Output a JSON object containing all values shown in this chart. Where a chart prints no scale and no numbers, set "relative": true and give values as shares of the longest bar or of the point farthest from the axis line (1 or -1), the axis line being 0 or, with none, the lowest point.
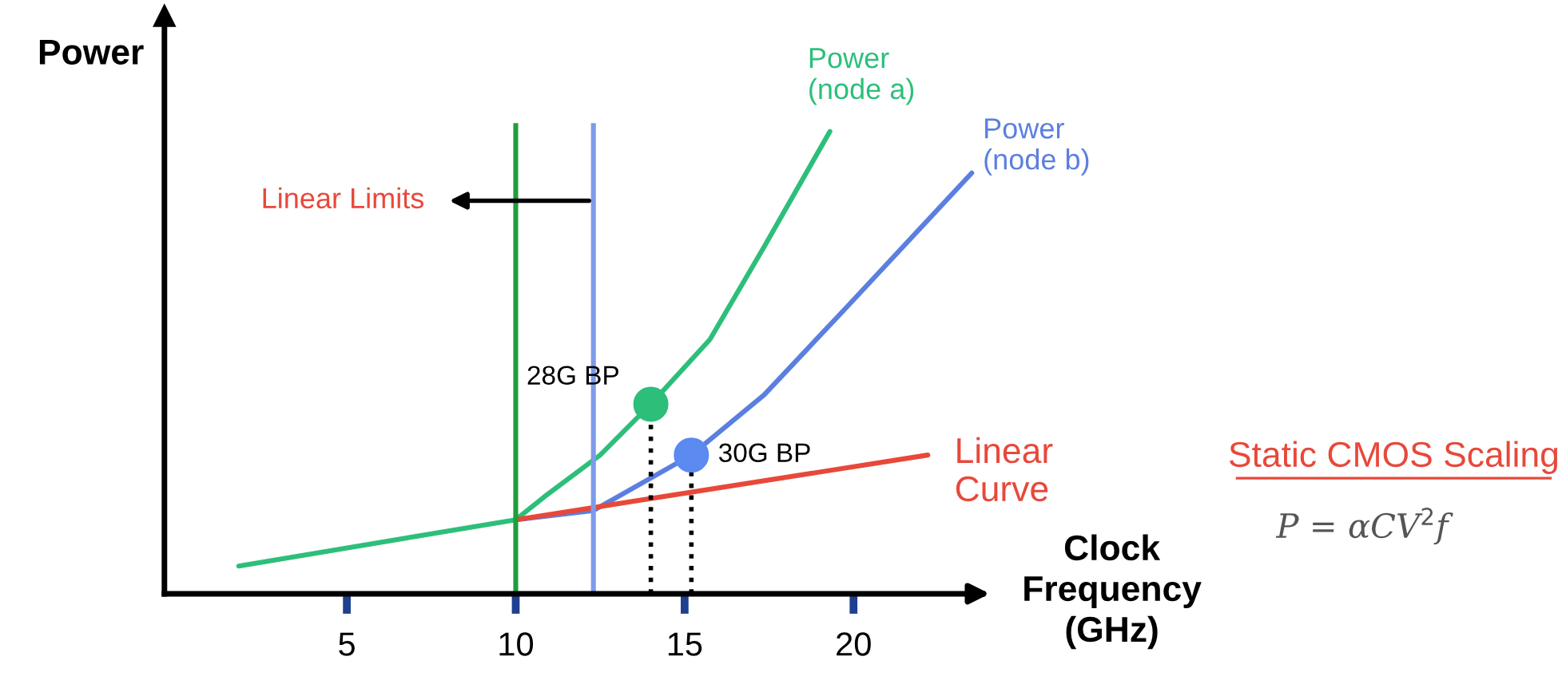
{
  "chart_data": {
    "type": "line",
    "relative": true,
    "ylabel": "Power",
    "xlabel": "Clock\nFrequency\n(GHz)",
    "xlim": [
      -0.4,
      23.8
    ],
    "xticks": [
      5,
      10,
      15,
      20
    ],
    "tick_labels": "x",
    "legend": false,
    "grid": false,
    "series": [
      {
        "name": "Power\n(node a)",
        "color": "#2dbf7a",
        "x": [
          1.8,
          10,
          10.85,
          12.5,
          14,
          15.75,
          17.35,
          19.3
        ],
        "values": [
          0.06,
          0.16,
          0.21,
          0.3,
          0.41,
          0.55,
          0.75,
          1.0
        ]
      },
      {
        "name": "Power\n(node b)",
        "color": "#5b7fe0",
        "x": [
          10,
          12.3,
          15.2,
          17.35,
          19.8,
          23.5
        ],
        "values": [
          0.16,
          0.18,
          0.3,
          0.43,
          0.62,
          0.91
        ]
      },
      {
        "name": "Linear\nCurve",
        "color": "#e8483a",
        "x": [
          10,
          22.2
        ],
        "values": [
          0.16,
          0.3
        ]
      },
      {
        "type": "lollipop",
        "color": "#2dbf7a",
        "x": [
          14
        ],
        "values": [
          0.41
        ],
        "marker": "circle",
        "line_style": "dotted"
      },
      {
        "type": "lollipop",
        "color": "#5b8af0",
        "x": [
          15.2
        ],
        "values": [
          0.3
        ],
        "marker": "circle",
        "line_style": "dotted"
      }
    ],
    "ref_lines": [
      {
        "axis": "x",
        "value": 10,
        "color": "#1f9e3a"
      },
      {
        "axis": "x",
        "value": 12.3,
        "color": "#7e9be8",
        "label": "Linear Limits"
      }
    ],
    "annotations": [
      {
        "text": "28G BP",
        "x": 14,
        "y": 0.41
      },
      {
        "text": "30G BP",
        "x": 15.2,
        "y": 0.3
      },
      "Static CMOS Scaling",
      "P = αCV$^{2}$f"
    ]
  }
}
